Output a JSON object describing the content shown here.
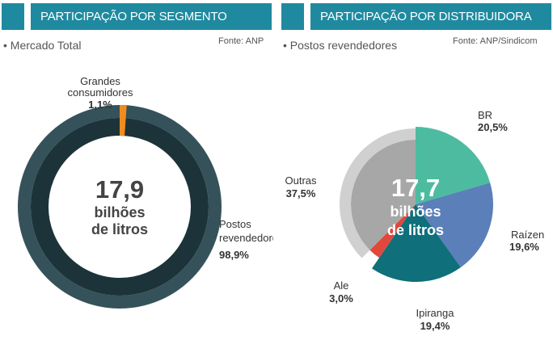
{
  "left_panel": {
    "header": "PARTICIPAÇÃO POR SEGMENTO",
    "subtitle": "• Mercado Total",
    "source": "Fonte: ANP",
    "center_number": "17,9",
    "center_line1": "bilhões",
    "center_line2": "de litros"
  },
  "right_panel": {
    "header": "PARTICIPAÇÃO POR DISTRIBUIDORA",
    "subtitle": "• Postos revendedores",
    "source": "Fonte: ANP/Sindicom",
    "center_number": "17,7",
    "center_line1": "bilhões",
    "center_line2": "de litros"
  },
  "chart_data": [
    {
      "type": "pie",
      "variant": "donut",
      "total_label": "17,9 bilhões de litros",
      "slices": [
        {
          "name": "Grandes consumidores",
          "label_lines": [
            "Grandes",
            "consumidores"
          ],
          "value": 1.1,
          "value_label": "1,1%",
          "color": "#f08c1e"
        },
        {
          "name": "Postos revendedores",
          "label_lines": [
            "Postos",
            "revendedores"
          ],
          "value": 98.9,
          "value_label": "98,9%",
          "color": "#35525a"
        }
      ]
    },
    {
      "type": "pie",
      "total_label": "17,7 bilhões de litros",
      "slices": [
        {
          "name": "BR",
          "label_lines": [
            "BR"
          ],
          "value": 20.5,
          "value_label": "20,5%",
          "color": "#4dbba0"
        },
        {
          "name": "Raízen",
          "label_lines": [
            "Raízen"
          ],
          "value": 19.6,
          "value_label": "19,6%",
          "color": "#5b7fb8"
        },
        {
          "name": "Ipiranga",
          "label_lines": [
            "Ipiranga"
          ],
          "value": 19.4,
          "value_label": "19,4%",
          "color": "#0f6f7a"
        },
        {
          "name": "Ale",
          "label_lines": [
            "Ale"
          ],
          "value": 3.0,
          "value_label": "3,0%",
          "color": "#e2473b"
        },
        {
          "name": "Outras",
          "label_lines": [
            "Outras"
          ],
          "value": 37.5,
          "value_label": "37,5%",
          "color": "#a7a7a7"
        }
      ]
    }
  ]
}
